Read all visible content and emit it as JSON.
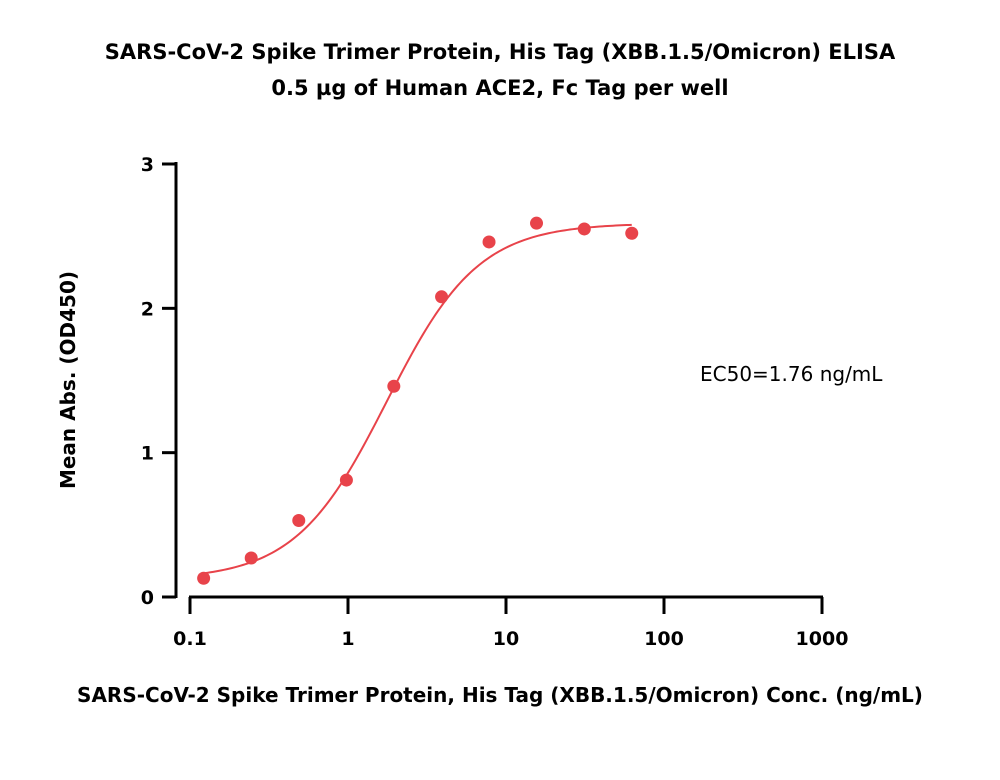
{
  "chart_data": {
    "type": "scatter",
    "title": "SARS-CoV-2 Spike Trimer Protein, His Tag (XBB.1.5/Omicron) ELISA",
    "subtitle": "0.5 µg of Human ACE2, Fc Tag per well",
    "xlabel": "SARS-CoV-2 Spike Trimer Protein, His Tag (XBB.1.5/Omicron) Conc. (ng/mL)",
    "ylabel": "Mean Abs. (OD450)",
    "x_scale": "log",
    "xlim": [
      0.1,
      1000
    ],
    "ylim": [
      0,
      3
    ],
    "x_ticks": [
      0.1,
      1,
      10,
      100,
      1000
    ],
    "x_tick_labels": [
      "0.1",
      "1",
      "10",
      "100",
      "1000"
    ],
    "y_ticks": [
      0,
      1,
      2,
      3
    ],
    "y_tick_labels": [
      "0",
      "1",
      "2",
      "3"
    ],
    "grid": false,
    "annotation": "EC50=1.76 ng/mL",
    "color": "#e8434a",
    "points": {
      "x": [
        0.122,
        0.244,
        0.488,
        0.977,
        1.95,
        3.91,
        7.81,
        15.6,
        31.3,
        62.5
      ],
      "y": [
        0.13,
        0.27,
        0.53,
        0.81,
        1.46,
        2.08,
        2.46,
        2.59,
        2.55,
        2.52
      ]
    },
    "fit": {
      "model": "4PL",
      "bottom": 0.12,
      "top": 2.59,
      "ec50": 1.76,
      "hill": 1.5,
      "x_range": [
        0.12,
        62.5
      ]
    }
  }
}
